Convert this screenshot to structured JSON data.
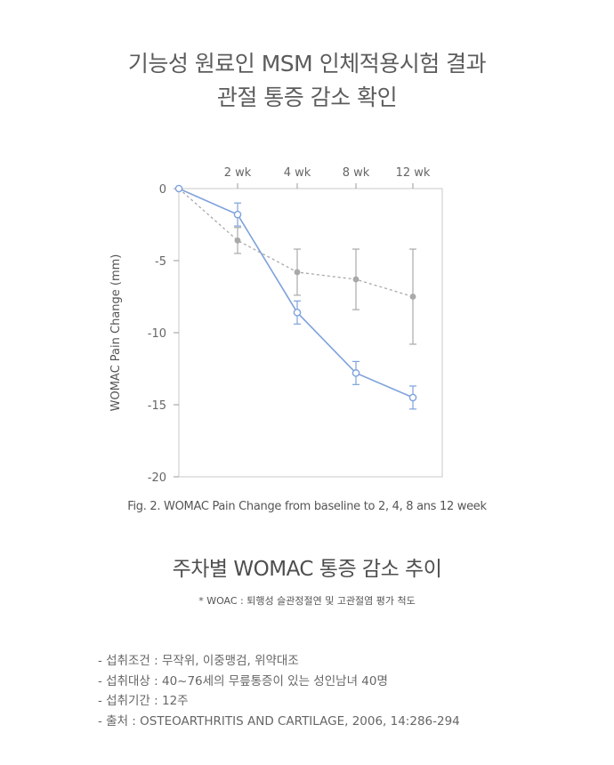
{
  "header": {
    "title_line1": "기능성 원료인 MSM 인체적용시험 결과",
    "title_line2": "관절 통증 감소 확인"
  },
  "chart_data": {
    "type": "line",
    "x": [
      0,
      2,
      4,
      8,
      12
    ],
    "top_tick_labels": [
      "2 wk",
      "4 wk",
      "8 wk",
      "12 wk"
    ],
    "ylabel": "WOMAC Pain Change (mm)",
    "ylim": [
      -20,
      0
    ],
    "yticks": [
      0,
      -5,
      -10,
      -15,
      -20
    ],
    "ytick_labels": [
      "0",
      "-5",
      "-10",
      "-15",
      "-20"
    ],
    "grid": false,
    "legend": "none",
    "series": [
      {
        "style": "solid",
        "marker": "open-circle",
        "color": "#7ea2dc",
        "values": [
          0,
          -1.8,
          -8.6,
          -12.8,
          -14.5
        ],
        "errors": [
          0,
          0.8,
          0.8,
          0.8,
          0.8
        ]
      },
      {
        "style": "dashed",
        "marker": "filled-circle",
        "color": "#a9a9a9",
        "values": [
          0,
          -3.6,
          -5.8,
          -6.3,
          -7.5
        ],
        "errors": [
          0,
          0.9,
          1.6,
          2.1,
          3.3
        ]
      }
    ],
    "caption": "Fig. 2. WOMAC Pain Change from baseline to 2, 4, 8 ans 12 week"
  },
  "main": {
    "subtitle": "주차별 WOMAC 통증 감소 추이",
    "note": "* WOAC : 퇴행성 슬관정절연 및 고관절염 평가 척도"
  },
  "info": [
    "섭취조건 : 무작위, 이중맹검, 위약대조",
    "섭취대상 : 40~76세의 무릎통증이 있는 성인남녀 40명",
    "섭취기간 : 12주",
    "출처 : OSTEOARTHRITIS AND CARTILAGE, 2006, 14:286-294"
  ]
}
